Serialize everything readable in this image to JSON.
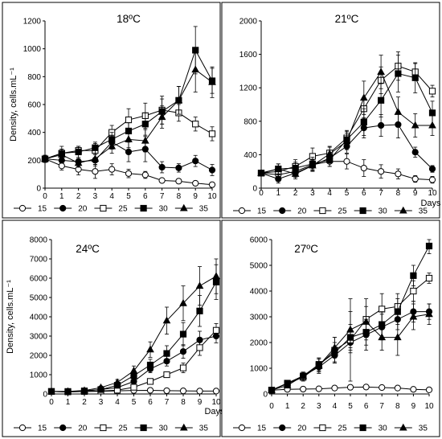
{
  "chart_data": [
    {
      "type": "line",
      "title": "18ºC",
      "ylabel": "Density, cells.mL⁻¹",
      "xlabel": "",
      "x": [
        0,
        1,
        2,
        3,
        4,
        5,
        6,
        7,
        8,
        9,
        10
      ],
      "x_ticks": [
        "0",
        "1",
        "2",
        "3",
        "4",
        "5",
        "6",
        "7",
        "8",
        "9",
        "10"
      ],
      "xlim": [
        0,
        10
      ],
      "ylim": [
        0,
        1200
      ],
      "y_ticks": [
        0,
        200,
        400,
        600,
        800,
        1000,
        1200
      ],
      "grid": false,
      "legend": "bottom",
      "series": [
        {
          "name": "15",
          "marker": "circle-open",
          "values": [
            210,
            160,
            135,
            120,
            135,
            105,
            95,
            55,
            50,
            35,
            25
          ],
          "errors": [
            25,
            30,
            40,
            50,
            40,
            30,
            25,
            10,
            10,
            8,
            8
          ]
        },
        {
          "name": "20",
          "marker": "circle-filled",
          "values": [
            210,
            200,
            190,
            200,
            330,
            260,
            280,
            150,
            145,
            195,
            130
          ],
          "errors": [
            25,
            20,
            30,
            40,
            50,
            70,
            90,
            40,
            30,
            40,
            40
          ]
        },
        {
          "name": "25",
          "marker": "square-open",
          "values": [
            210,
            250,
            270,
            270,
            400,
            490,
            520,
            560,
            540,
            460,
            390
          ],
          "errors": [
            25,
            30,
            30,
            50,
            50,
            80,
            90,
            100,
            60,
            50,
            50
          ]
        },
        {
          "name": "30",
          "marker": "square-filled",
          "values": [
            210,
            250,
            260,
            290,
            350,
            410,
            460,
            550,
            630,
            990,
            770
          ],
          "errors": [
            25,
            50,
            40,
            40,
            50,
            60,
            80,
            90,
            100,
            170,
            90
          ]
        },
        {
          "name": "35",
          "marker": "triangle-filled",
          "values": [
            210,
            240,
            180,
            210,
            300,
            350,
            340,
            510,
            630,
            850,
            760
          ],
          "errors": [
            25,
            40,
            30,
            40,
            50,
            60,
            80,
            80,
            100,
            160,
            110
          ]
        }
      ]
    },
    {
      "type": "line",
      "title": "21ºC",
      "ylabel": "",
      "xlabel": "Days",
      "x": [
        0,
        1,
        2,
        3,
        4,
        5,
        6,
        7,
        8,
        9,
        10
      ],
      "x_ticks": [
        "0",
        "1",
        "2",
        "3",
        "4",
        "5",
        "6",
        "7",
        "8",
        "9",
        "10"
      ],
      "xlim": [
        0,
        10
      ],
      "ylim": [
        0,
        2000
      ],
      "y_ticks": [
        0,
        400,
        800,
        1200,
        1600,
        2000
      ],
      "grid": false,
      "legend": "bottom",
      "series": [
        {
          "name": "15",
          "marker": "circle-open",
          "values": [
            180,
            160,
            200,
            280,
            320,
            320,
            240,
            200,
            170,
            110,
            100
          ],
          "errors": [
            30,
            40,
            50,
            60,
            60,
            90,
            100,
            80,
            60,
            40,
            40
          ]
        },
        {
          "name": "20",
          "marker": "circle-filled",
          "values": [
            180,
            110,
            180,
            270,
            360,
            500,
            720,
            750,
            760,
            430,
            230
          ],
          "errors": [
            30,
            50,
            50,
            60,
            60,
            80,
            120,
            130,
            160,
            60,
            40
          ]
        },
        {
          "name": "25",
          "marker": "square-open",
          "values": [
            180,
            200,
            260,
            380,
            420,
            600,
            950,
            1290,
            1460,
            1390,
            1160
          ],
          "errors": [
            30,
            60,
            80,
            100,
            80,
            90,
            120,
            160,
            170,
            100,
            70
          ]
        },
        {
          "name": "30",
          "marker": "square-filled",
          "values": [
            180,
            230,
            240,
            290,
            340,
            580,
            790,
            1050,
            1370,
            1320,
            900
          ],
          "errors": [
            30,
            60,
            70,
            80,
            80,
            100,
            160,
            200,
            220,
            180,
            140
          ]
        },
        {
          "name": "35",
          "marker": "triangle-filled",
          "values": [
            180,
            230,
            170,
            270,
            410,
            560,
            1080,
            1390,
            910,
            750,
            750
          ],
          "errors": [
            30,
            60,
            60,
            70,
            80,
            100,
            200,
            200,
            180,
            140,
            120
          ]
        }
      ]
    },
    {
      "type": "line",
      "title": "24ºC",
      "ylabel": "Density, cells.mL⁻¹",
      "xlabel": "Days",
      "x": [
        0,
        1,
        2,
        3,
        4,
        5,
        6,
        7,
        8,
        9,
        10
      ],
      "x_ticks": [
        "0",
        "1",
        "2",
        "3",
        "4",
        "5",
        "6",
        "7",
        "8",
        "9",
        "10"
      ],
      "xlim": [
        0,
        10
      ],
      "ylim": [
        0,
        8000
      ],
      "y_ticks": [
        0,
        1000,
        2000,
        3000,
        4000,
        5000,
        6000,
        7000,
        8000
      ],
      "grid": false,
      "legend": "bottom",
      "series": [
        {
          "name": "15",
          "marker": "circle-open",
          "values": [
            130,
            110,
            130,
            140,
            160,
            180,
            190,
            170,
            160,
            150,
            150
          ],
          "errors": [
            30,
            30,
            30,
            30,
            30,
            30,
            30,
            30,
            30,
            30,
            30
          ]
        },
        {
          "name": "20",
          "marker": "circle-filled",
          "values": [
            130,
            110,
            160,
            230,
            330,
            650,
            1300,
            1700,
            2200,
            2800,
            3000
          ],
          "errors": [
            40,
            40,
            50,
            60,
            80,
            120,
            200,
            250,
            350,
            450,
            350
          ]
        },
        {
          "name": "25",
          "marker": "square-open",
          "values": [
            130,
            110,
            130,
            150,
            200,
            350,
            650,
            1000,
            1350,
            2400,
            3300
          ],
          "errors": [
            40,
            40,
            40,
            50,
            60,
            80,
            100,
            150,
            250,
            400,
            350
          ]
        },
        {
          "name": "30",
          "marker": "square-filled",
          "values": [
            130,
            130,
            160,
            230,
            450,
            950,
            1500,
            2100,
            3100,
            4300,
            5800
          ],
          "errors": [
            40,
            40,
            50,
            60,
            100,
            200,
            300,
            400,
            600,
            800,
            900
          ]
        },
        {
          "name": "35",
          "marker": "triangle-filled",
          "values": [
            130,
            130,
            180,
            330,
            600,
            1200,
            2300,
            3800,
            4700,
            5600,
            6100
          ],
          "errors": [
            40,
            40,
            50,
            80,
            150,
            250,
            400,
            700,
            900,
            1000,
            900
          ]
        }
      ]
    },
    {
      "type": "line",
      "title": "27ºC",
      "ylabel": "",
      "xlabel": "",
      "x": [
        0,
        1,
        2,
        3,
        4,
        5,
        6,
        7,
        8,
        9,
        10
      ],
      "x_ticks": [
        "0",
        "1",
        "2",
        "3",
        "4",
        "5",
        "6",
        "7",
        "8",
        "9",
        "10"
      ],
      "xlim": [
        0,
        10
      ],
      "ylim": [
        0,
        6000
      ],
      "y_ticks": [
        0,
        1000,
        2000,
        3000,
        4000,
        5000,
        6000
      ],
      "grid": false,
      "legend": "bottom",
      "series": [
        {
          "name": "15",
          "marker": "circle-open",
          "values": [
            150,
            180,
            190,
            200,
            230,
            260,
            270,
            250,
            230,
            180,
            160
          ],
          "errors": [
            30,
            30,
            30,
            30,
            30,
            30,
            30,
            30,
            30,
            30,
            30
          ]
        },
        {
          "name": "20",
          "marker": "circle-filled",
          "values": [
            150,
            420,
            700,
            1050,
            1500,
            2000,
            2300,
            2600,
            2900,
            3200,
            3200
          ],
          "errors": [
            50,
            100,
            120,
            150,
            250,
            400,
            600,
            500,
            400,
            400,
            300
          ]
        },
        {
          "name": "25",
          "marker": "square-open",
          "values": [
            150,
            400,
            650,
            1100,
            1700,
            2100,
            2900,
            3300,
            3400,
            4000,
            4500
          ],
          "errors": [
            50,
            100,
            150,
            250,
            500,
            1600,
            800,
            600,
            500,
            400,
            200
          ]
        },
        {
          "name": "30",
          "marker": "square-filled",
          "values": [
            150,
            420,
            700,
            1150,
            1600,
            2200,
            2400,
            2700,
            3200,
            4600,
            5750
          ],
          "errors": [
            50,
            100,
            150,
            250,
            400,
            500,
            500,
            500,
            500,
            400,
            300
          ]
        },
        {
          "name": "35",
          "marker": "triangle-filled",
          "values": [
            150,
            330,
            700,
            1100,
            1800,
            2500,
            2800,
            2200,
            2200,
            3000,
            3100
          ],
          "errors": [
            50,
            100,
            150,
            300,
            400,
            700,
            600,
            500,
            700,
            500,
            400
          ]
        }
      ]
    }
  ]
}
